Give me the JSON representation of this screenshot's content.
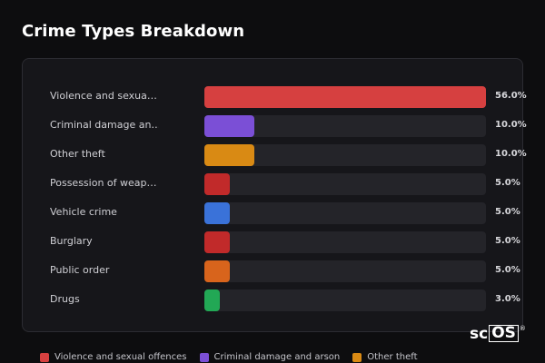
{
  "header": {
    "title": "Crime Types Breakdown"
  },
  "chart_data": {
    "type": "bar",
    "orientation": "horizontal",
    "title": "Crime Types Breakdown",
    "categories": [
      "Violence and sexua…",
      "Criminal damage an…",
      "Other theft",
      "Possession of weap…",
      "Vehicle crime",
      "Burglary",
      "Public order",
      "Drugs"
    ],
    "values": [
      56.0,
      10.0,
      10.0,
      5.0,
      5.0,
      5.0,
      5.0,
      3.0
    ],
    "value_labels": [
      "56.0%",
      "10.0%",
      "10.0%",
      "5.0%",
      "5.0%",
      "5.0%",
      "5.0%",
      "3.0%"
    ],
    "colors": [
      "#d64040",
      "#7b4fd6",
      "#d98a14",
      "#c12a2a",
      "#3a72d9",
      "#c12a2a",
      "#d8641c",
      "#22a855"
    ],
    "xlim": [
      0,
      56
    ],
    "unit": "%"
  },
  "legend": [
    {
      "label": "Violence and sexual offences",
      "color": "#d64040"
    },
    {
      "label": "Criminal damage and arson",
      "color": "#7b4fd6"
    },
    {
      "label": "Other theft",
      "color": "#d98a14"
    }
  ],
  "brand": {
    "prefix": "sc",
    "boxed": "OS",
    "mark": "®"
  }
}
